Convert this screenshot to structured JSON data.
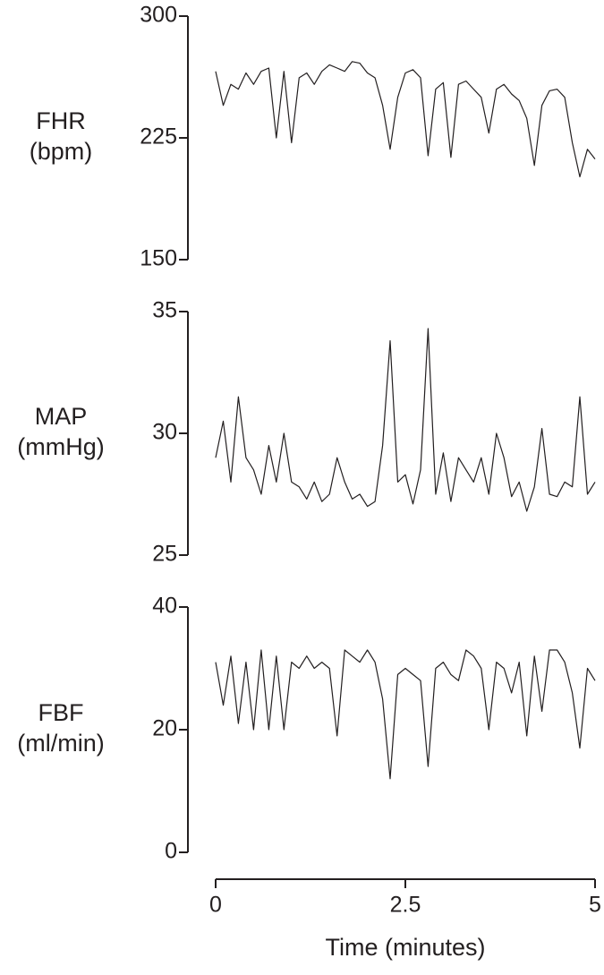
{
  "chart_data": [
    {
      "type": "line",
      "ylabel": [
        "FHR",
        "(bpm)"
      ],
      "ylim": [
        150,
        300
      ],
      "yticks": [
        150,
        225,
        300
      ],
      "xlim": [
        0,
        5
      ],
      "x": [
        0,
        0.1,
        0.2,
        0.3,
        0.4,
        0.5,
        0.6,
        0.7,
        0.8,
        0.9,
        1,
        1.1,
        1.2,
        1.3,
        1.4,
        1.5,
        1.6,
        1.7,
        1.8,
        1.9,
        2,
        2.1,
        2.2,
        2.3,
        2.4,
        2.5,
        2.6,
        2.7,
        2.8,
        2.9,
        3,
        3.1,
        3.2,
        3.3,
        3.4,
        3.5,
        3.6,
        3.7,
        3.8,
        3.9,
        4,
        4.1,
        4.2,
        4.3,
        4.4,
        4.5,
        4.6,
        4.7,
        4.8,
        4.9,
        5
      ],
      "values": [
        266,
        245,
        258,
        255,
        265,
        258,
        266,
        268,
        225,
        266,
        222,
        262,
        265,
        258,
        266,
        270,
        268,
        266,
        272,
        271,
        265,
        262,
        245,
        218,
        250,
        265,
        267,
        262,
        214,
        255,
        259,
        213,
        258,
        260,
        255,
        250,
        228,
        255,
        258,
        252,
        248,
        237,
        208,
        245,
        254,
        255,
        250,
        222,
        201,
        218,
        212
      ]
    },
    {
      "type": "line",
      "ylabel": [
        "MAP",
        "(mmHg)"
      ],
      "ylim": [
        25,
        35
      ],
      "yticks": [
        25,
        30,
        35
      ],
      "xlim": [
        0,
        5
      ],
      "x": [
        0,
        0.1,
        0.2,
        0.3,
        0.4,
        0.5,
        0.6,
        0.7,
        0.8,
        0.9,
        1,
        1.1,
        1.2,
        1.3,
        1.4,
        1.5,
        1.6,
        1.7,
        1.8,
        1.9,
        2,
        2.1,
        2.2,
        2.3,
        2.4,
        2.5,
        2.6,
        2.7,
        2.8,
        2.9,
        3,
        3.1,
        3.2,
        3.3,
        3.4,
        3.5,
        3.6,
        3.7,
        3.8,
        3.9,
        4,
        4.1,
        4.2,
        4.3,
        4.4,
        4.5,
        4.6,
        4.7,
        4.8,
        4.9,
        5
      ],
      "values": [
        29,
        30.5,
        28,
        31.5,
        29,
        28.5,
        27.5,
        29.5,
        28,
        30,
        28,
        27.8,
        27.3,
        28,
        27.2,
        27.5,
        29,
        28,
        27.3,
        27.5,
        27,
        27.2,
        29.5,
        33.8,
        28,
        28.3,
        27.1,
        28.5,
        34.3,
        27.5,
        29.2,
        27.2,
        29,
        28.5,
        28,
        29,
        27.5,
        30,
        29,
        27.4,
        28,
        26.8,
        27.8,
        30.2,
        27.5,
        27.4,
        28,
        27.8,
        31.5,
        27.5,
        28
      ]
    },
    {
      "type": "line",
      "ylabel": [
        "FBF",
        "(ml/min)"
      ],
      "ylim": [
        0,
        40
      ],
      "yticks": [
        0,
        20,
        40
      ],
      "xlim": [
        0,
        5
      ],
      "xticks": [
        0,
        2.5,
        5
      ],
      "xlabel": "Time (minutes)",
      "x": [
        0,
        0.1,
        0.2,
        0.3,
        0.4,
        0.5,
        0.6,
        0.7,
        0.8,
        0.9,
        1,
        1.1,
        1.2,
        1.3,
        1.4,
        1.5,
        1.6,
        1.7,
        1.8,
        1.9,
        2,
        2.1,
        2.2,
        2.3,
        2.4,
        2.5,
        2.6,
        2.7,
        2.8,
        2.9,
        3,
        3.1,
        3.2,
        3.3,
        3.4,
        3.5,
        3.6,
        3.7,
        3.8,
        3.9,
        4,
        4.1,
        4.2,
        4.3,
        4.4,
        4.5,
        4.6,
        4.7,
        4.8,
        4.9,
        5
      ],
      "values": [
        31,
        24,
        32,
        21,
        31,
        20,
        33,
        20,
        32,
        20,
        31,
        30,
        32,
        30,
        31,
        30,
        19,
        33,
        32,
        31,
        33,
        31,
        25,
        12,
        29,
        30,
        29,
        28,
        14,
        30,
        31,
        29,
        28,
        33,
        32,
        30,
        20,
        31,
        30,
        26,
        31,
        19,
        32,
        23,
        33,
        33,
        31,
        26,
        17,
        30,
        28
      ]
    }
  ]
}
